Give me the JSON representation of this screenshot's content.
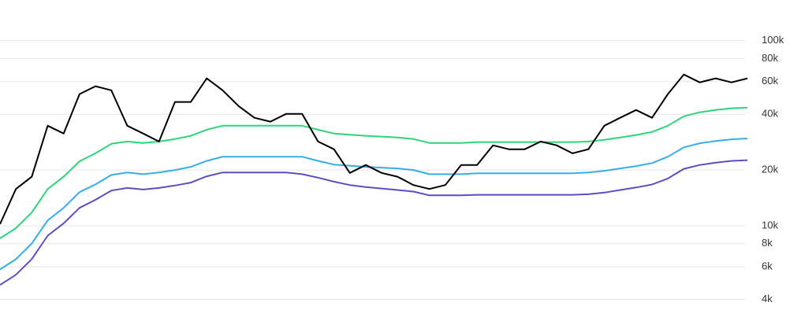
{
  "chart_data": {
    "type": "line",
    "log_scale": true,
    "grid": true,
    "ylim": [
      3650,
      112000
    ],
    "yticks": [
      {
        "value": 4000,
        "label": "4k"
      },
      {
        "value": 6000,
        "label": "6k"
      },
      {
        "value": 8000,
        "label": "8k"
      },
      {
        "value": 10000,
        "label": "10k"
      },
      {
        "value": 20000,
        "label": "20k"
      },
      {
        "value": 40000,
        "label": "40k"
      },
      {
        "value": 60000,
        "label": "60k"
      },
      {
        "value": 80000,
        "label": "80k"
      },
      {
        "value": 100000,
        "label": "100k"
      }
    ],
    "series": [
      {
        "color": "#5b4fbf",
        "values": [
          4790,
          5440,
          6610,
          8850,
          10300,
          12500,
          13800,
          15500,
          16000,
          15700,
          16000,
          16500,
          17100,
          18500,
          19400,
          19400,
          19400,
          19400,
          19400,
          19000,
          18200,
          17300,
          16600,
          16200,
          15900,
          15600,
          15300,
          14600,
          14600,
          14600,
          14700,
          14700,
          14700,
          14700,
          14700,
          14700,
          14700,
          14800,
          15100,
          15600,
          16100,
          16700,
          18000,
          20300,
          21300,
          21900,
          22400,
          22600
        ]
      },
      {
        "color": "#35aee8",
        "values": [
          5810,
          6600,
          8020,
          10700,
          12500,
          15200,
          16700,
          18800,
          19400,
          19000,
          19400,
          20000,
          20800,
          22400,
          23600,
          23600,
          23600,
          23600,
          23600,
          23600,
          22400,
          21400,
          21100,
          20800,
          20600,
          20400,
          20000,
          19000,
          19000,
          19000,
          19200,
          19200,
          19200,
          19200,
          19200,
          19200,
          19200,
          19400,
          19800,
          20400,
          21000,
          21800,
          23600,
          26500,
          27900,
          28700,
          29300,
          29600
        ]
      },
      {
        "color": "#2ed47a",
        "values": [
          8550,
          9710,
          11800,
          15800,
          18400,
          22300,
          24600,
          27700,
          28500,
          28000,
          28500,
          29400,
          30600,
          33000,
          34700,
          34700,
          34700,
          34700,
          34700,
          34700,
          33000,
          31500,
          31000,
          30600,
          30300,
          30000,
          29400,
          28000,
          28000,
          28000,
          28300,
          28300,
          28300,
          28300,
          28300,
          28300,
          28300,
          28500,
          29100,
          30000,
          30900,
          32100,
          34700,
          39000,
          41000,
          42200,
          43100,
          43500
        ]
      },
      {
        "color": "#000000",
        "values": [
          10200,
          15800,
          18400,
          34700,
          31500,
          51400,
          56700,
          53900,
          34700,
          31500,
          28500,
          46600,
          46600,
          62500,
          53900,
          44300,
          38300,
          36500,
          40200,
          40200,
          28500,
          25900,
          19300,
          21300,
          19300,
          18400,
          16600,
          15800,
          16600,
          21300,
          21300,
          27200,
          25900,
          25900,
          28500,
          27200,
          24600,
          25900,
          34700,
          38300,
          42200,
          38300,
          51400,
          65600,
          59500,
          62500,
          59500,
          62500
        ]
      }
    ]
  }
}
